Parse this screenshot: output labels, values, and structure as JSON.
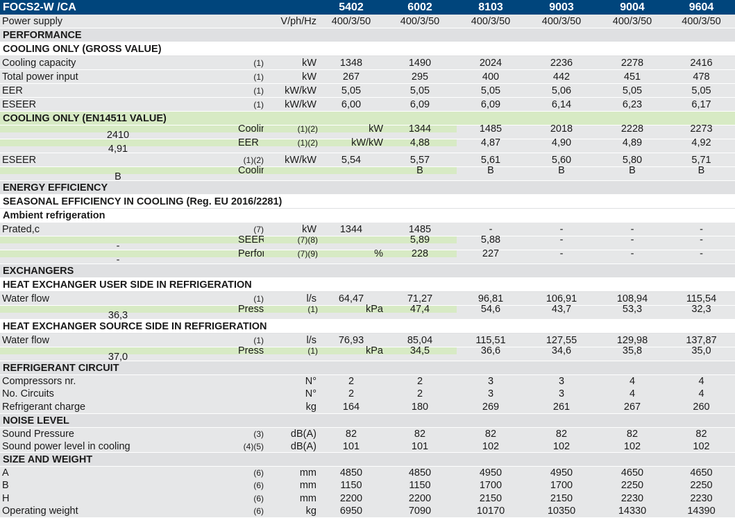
{
  "header": {
    "model": "FOCS2-W /CA",
    "sizes": [
      "5402",
      "6002",
      "8103",
      "9003",
      "9004",
      "9604"
    ]
  },
  "power_supply": {
    "label": "Power supply",
    "unit": "V/ph/Hz",
    "values": [
      "400/3/50",
      "400/3/50",
      "400/3/50",
      "400/3/50",
      "400/3/50",
      "400/3/50"
    ]
  },
  "sections": {
    "performance": "PERFORMANCE",
    "cooling_gross": "COOLING ONLY (GROSS VALUE)",
    "cooling_en": "COOLING ONLY (EN14511 VALUE)",
    "energy_eff": "ENERGY EFFICIENCY",
    "seasonal": "SEASONAL EFFICIENCY IN COOLING (Reg. EU 2016/2281)",
    "ambient": "Ambient refrigeration",
    "exchangers": "EXCHANGERS",
    "hx_user": "HEAT EXCHANGER USER SIDE IN REFRIGERATION",
    "hx_source": "HEAT EXCHANGER SOURCE SIDE IN REFRIGERATION",
    "refrigerant": "REFRIGERANT CIRCUIT",
    "noise": "NOISE LEVEL",
    "size_weight": "SIZE AND WEIGHT"
  },
  "gross": [
    {
      "label": "Cooling capacity",
      "note": "(1)",
      "unit": "kW",
      "values": [
        "1348",
        "1490",
        "2024",
        "2236",
        "2278",
        "2416"
      ]
    },
    {
      "label": "Total power input",
      "note": "(1)",
      "unit": "kW",
      "values": [
        "267",
        "295",
        "400",
        "442",
        "451",
        "478"
      ]
    },
    {
      "label": "EER",
      "note": "(1)",
      "unit": "kW/kW",
      "values": [
        "5,05",
        "5,05",
        "5,05",
        "5,06",
        "5,05",
        "5,05"
      ]
    },
    {
      "label": "ESEER",
      "note": "(1)",
      "unit": "kW/kW",
      "values": [
        "6,00",
        "6,09",
        "6,09",
        "6,14",
        "6,23",
        "6,17"
      ]
    }
  ],
  "en": [
    {
      "label": "Cooling capacity",
      "note": "(1)(2)",
      "unit": "kW",
      "values": [
        "1344",
        "1485",
        "2018",
        "2228",
        "2273",
        "2410"
      ]
    },
    {
      "label": "EER",
      "note": "(1)(2)",
      "unit": "kW/kW",
      "values": [
        "4,88",
        "4,87",
        "4,90",
        "4,89",
        "4,92",
        "4,91"
      ]
    },
    {
      "label": "ESEER",
      "note": "(1)(2)",
      "unit": "kW/kW",
      "values": [
        "5,54",
        "5,57",
        "5,61",
        "5,60",
        "5,80",
        "5,71"
      ]
    },
    {
      "label": "Cooling  energy class",
      "note": "",
      "unit": "",
      "values": [
        "B",
        "B",
        "B",
        "B",
        "B",
        "B"
      ]
    }
  ],
  "seasonal": [
    {
      "label": "Prated,c",
      "note": "(7)",
      "unit": "kW",
      "values": [
        "1344",
        "1485",
        "-",
        "-",
        "-",
        "-"
      ]
    },
    {
      "label": "SEER",
      "note": "(7)(8)",
      "unit": "",
      "values": [
        "5,89",
        "5,88",
        "-",
        "-",
        "-",
        "-"
      ]
    },
    {
      "label": "Performance ηs",
      "note": "(7)(9)",
      "unit": "%",
      "values": [
        "228",
        "227",
        "-",
        "-",
        "-",
        "-"
      ]
    }
  ],
  "hx_user": [
    {
      "label": "Water flow",
      "note": "(1)",
      "unit": "l/s",
      "values": [
        "64,47",
        "71,27",
        "96,81",
        "106,91",
        "108,94",
        "115,54"
      ]
    },
    {
      "label": "Pressure drop",
      "note": "(1)",
      "unit": "kPa",
      "values": [
        "47,4",
        "54,6",
        "43,7",
        "53,3",
        "32,3",
        "36,3"
      ]
    }
  ],
  "hx_source": [
    {
      "label": "Water flow",
      "note": "(1)",
      "unit": "l/s",
      "values": [
        "76,93",
        "85,04",
        "115,51",
        "127,55",
        "129,98",
        "137,87"
      ]
    },
    {
      "label": "Pressure drop",
      "note": "(1)",
      "unit": "kPa",
      "values": [
        "34,5",
        "36,6",
        "34,6",
        "35,8",
        "35,0",
        "37,0"
      ]
    }
  ],
  "refrigerant": {
    "labels": [
      "Compressors nr.",
      "No. Circuits",
      "Refrigerant charge"
    ],
    "units": [
      "N°",
      "N°",
      "kg"
    ],
    "columns": [
      [
        "2",
        "2",
        "164"
      ],
      [
        "2",
        "2",
        "180"
      ],
      [
        "3",
        "3",
        "269"
      ],
      [
        "3",
        "3",
        "261"
      ],
      [
        "4",
        "4",
        "267"
      ],
      [
        "4",
        "4",
        "260"
      ]
    ]
  },
  "noise": {
    "labels": [
      "Sound Pressure",
      "Sound power level in cooling"
    ],
    "notes": [
      "(3)",
      "(4)(5)"
    ],
    "units": [
      "dB(A)",
      "dB(A)"
    ],
    "columns": [
      [
        "82",
        "101"
      ],
      [
        "82",
        "101"
      ],
      [
        "82",
        "102"
      ],
      [
        "82",
        "102"
      ],
      [
        "82",
        "102"
      ],
      [
        "82",
        "102"
      ]
    ]
  },
  "size": {
    "labels": [
      "A",
      "B",
      "H",
      "Operating weight"
    ],
    "notes": [
      "(6)",
      "(6)",
      "(6)",
      "(6)"
    ],
    "units": [
      "mm",
      "mm",
      "mm",
      "kg"
    ],
    "columns": [
      [
        "4850",
        "1150",
        "2200",
        "6950"
      ],
      [
        "4850",
        "1150",
        "2200",
        "7090"
      ],
      [
        "4950",
        "1700",
        "2150",
        "10170"
      ],
      [
        "4950",
        "1700",
        "2150",
        "10350"
      ],
      [
        "4650",
        "2250",
        "2230",
        "14330"
      ],
      [
        "4650",
        "2250",
        "2230",
        "14390"
      ]
    ]
  },
  "colors": {
    "header_bg": "#00457c",
    "row_bg": "#e6e7e8",
    "highlight_green": "#d7eac4"
  }
}
